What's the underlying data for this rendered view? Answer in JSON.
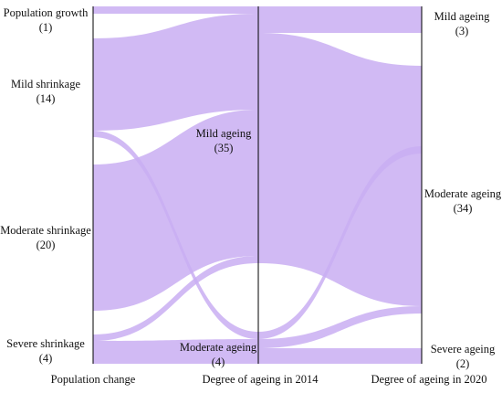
{
  "colors": {
    "flow": "#c9aef2",
    "axis_line": "#000000",
    "background": "#ffffff"
  },
  "axes": [
    {
      "label": "Population change"
    },
    {
      "label": "Degree of ageing in 2014"
    },
    {
      "label": "Degree of ageing in 2020"
    }
  ],
  "nodes": {
    "population_growth": {
      "name": "Population growth",
      "count": "(1)"
    },
    "mild_shrinkage": {
      "name": "Mild shrinkage",
      "count": "(14)"
    },
    "moderate_shrinkage": {
      "name": "Moderate shrinkage",
      "count": "(20)"
    },
    "severe_shrinkage": {
      "name": "Severe shrinkage",
      "count": "(4)"
    },
    "mild_ageing_2014": {
      "name": "Mild ageing",
      "count": "(35)"
    },
    "moderate_ageing_2014": {
      "name": "Moderate ageing",
      "count": "(4)"
    },
    "mild_ageing_2020": {
      "name": "Mild ageing",
      "count": "(3)"
    },
    "moderate_ageing_2020": {
      "name": "Moderate ageing",
      "count": "(34)"
    },
    "severe_ageing_2020": {
      "name": "Severe ageing",
      "count": "(2)"
    }
  },
  "flows_stage1": [
    {
      "from": "Population growth",
      "to": "Mild ageing (2014)",
      "value": 1
    },
    {
      "from": "Mild shrinkage",
      "to": "Mild ageing (2014)",
      "value": 13
    },
    {
      "from": "Mild shrinkage",
      "to": "Moderate ageing (2014)",
      "value": 1
    },
    {
      "from": "Moderate shrinkage",
      "to": "Mild ageing (2014)",
      "value": 20
    },
    {
      "from": "Severe shrinkage",
      "to": "Mild ageing (2014)",
      "value": 1
    },
    {
      "from": "Severe shrinkage",
      "to": "Moderate ageing (2014)",
      "value": 3
    }
  ],
  "flows_stage2": [
    {
      "from": "Mild ageing (2014)",
      "to": "Mild ageing (2020)",
      "value": 2
    },
    {
      "from": "Mild ageing (2014)",
      "to": "Moderate ageing (2020)",
      "value": 33
    },
    {
      "from": "Moderate ageing (2014)",
      "to": "Mild ageing (2020)",
      "value": 1
    },
    {
      "from": "Moderate ageing (2014)",
      "to": "Moderate ageing (2020)",
      "value": 1
    },
    {
      "from": "Moderate ageing (2014)",
      "to": "Severe ageing (2020)",
      "value": 2
    }
  ]
}
